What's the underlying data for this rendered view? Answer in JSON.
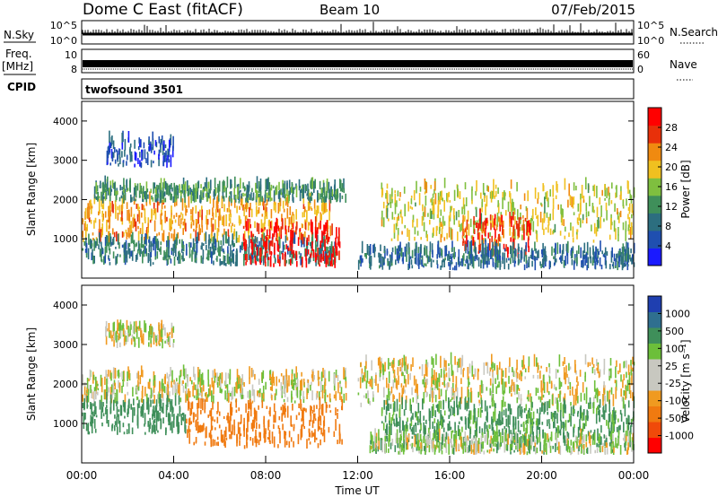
{
  "header": {
    "station": "Dome C East (fitACF)",
    "beam": "Beam 10",
    "date": "07/Feb/2015"
  },
  "panels": {
    "nsky_label": "N.Sky",
    "nsky_ticks": [
      "10^5",
      "10^0"
    ],
    "nsearch_label": "N.Search",
    "freq_label_1": "Freq.",
    "freq_label_2": "[MHz]",
    "freq_ticks": [
      "10",
      "8"
    ],
    "nave_label": "Nave",
    "nave_ticks": [
      "60",
      "0"
    ],
    "cpid_label": "CPID",
    "cpid_value": "twofsound 3501"
  },
  "colors": {
    "power_scale": [
      "#1a1aff",
      "#1f4fb0",
      "#2c6e7f",
      "#3f8f5a",
      "#7fbf3f",
      "#f0c020",
      "#f08a10",
      "#e8300a",
      "#ff0000"
    ],
    "velocity_scale": [
      "#ff0000",
      "#f04a0a",
      "#f07a10",
      "#f09a20",
      "#c8c8c0",
      "#c8c8c0",
      "#6cbf3a",
      "#3f8f5a",
      "#2f6f8f",
      "#1f3fb0"
    ]
  },
  "chart_data": [
    {
      "type": "heatmap",
      "ylabel": "Slant Range [km]",
      "yticks": [
        "1000",
        "2000",
        "3000",
        "4000"
      ],
      "ylim": [
        0,
        4500
      ],
      "xlim": [
        0,
        24
      ],
      "colorbar_label": "Power [dB]",
      "colorbar_ticks": [
        "4",
        "8",
        "12",
        "16",
        "20",
        "24",
        "28"
      ],
      "colorbar_range": [
        0,
        32
      ],
      "bands": [
        {
          "t0": 0.0,
          "t1": 10.8,
          "r0": 900,
          "r1": 1900,
          "value": 22
        },
        {
          "t0": 0.0,
          "t1": 11.0,
          "r0": 300,
          "r1": 900,
          "value": 10
        },
        {
          "t0": 7.0,
          "t1": 11.2,
          "r0": 250,
          "r1": 1300,
          "value": 30
        },
        {
          "t0": 0.5,
          "t1": 11.5,
          "r0": 1900,
          "r1": 2300,
          "value": 12
        },
        {
          "t0": 1.0,
          "t1": 4.0,
          "r0": 2800,
          "r1": 3500,
          "value": 6
        },
        {
          "t0": 13.0,
          "t1": 24.0,
          "r0": 900,
          "r1": 2300,
          "value": 18
        },
        {
          "t0": 16.5,
          "t1": 19.5,
          "r0": 500,
          "r1": 1500,
          "value": 27
        },
        {
          "t0": 12.0,
          "t1": 24.0,
          "r0": 200,
          "r1": 700,
          "value": 8
        }
      ]
    },
    {
      "type": "heatmap",
      "ylabel": "Slant Range [km]",
      "yticks": [
        "1000",
        "2000",
        "3000",
        "4000"
      ],
      "ylim": [
        0,
        4500
      ],
      "xlim": [
        0,
        24
      ],
      "xticks": [
        "00:00",
        "04:00",
        "08:00",
        "12:00",
        "16:00",
        "20:00",
        "00:00"
      ],
      "xlabel": "Time UT",
      "colorbar_label": "Velocity [m s⁻¹]",
      "colorbar_ticks": [
        "1000",
        "500",
        "100",
        "25",
        "-25",
        "-100",
        "-500",
        "-1000"
      ],
      "bands": [
        {
          "t0": 0.0,
          "t1": 11.5,
          "r0": 1500,
          "r1": 2200,
          "value": 0
        },
        {
          "t0": 0.0,
          "t1": 4.5,
          "r0": 700,
          "r1": 1500,
          "value": 300
        },
        {
          "t0": 4.5,
          "t1": 11.3,
          "r0": 350,
          "r1": 1400,
          "value": -300
        },
        {
          "t0": 1.0,
          "t1": 4.0,
          "r0": 2900,
          "r1": 3400,
          "value": 0
        },
        {
          "t0": 12.0,
          "t1": 24.0,
          "r0": 1400,
          "r1": 2500,
          "value": 0
        },
        {
          "t0": 13.0,
          "t1": 24.0,
          "r0": 600,
          "r1": 1400,
          "value": 150
        },
        {
          "t0": 12.5,
          "t1": 24.0,
          "r0": 200,
          "r1": 600,
          "value": 40
        }
      ]
    }
  ]
}
